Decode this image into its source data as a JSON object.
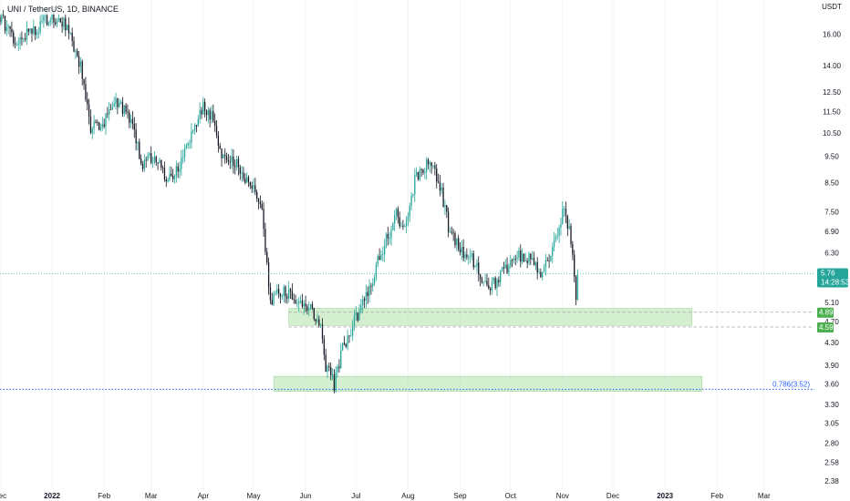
{
  "header": {
    "title": "UNI / TetherUS, 1D, BINANCE",
    "currency": "USDT"
  },
  "colors": {
    "up": "#26a69a",
    "down": "#131722",
    "zone": "#b7e4b0",
    "zone_border": "#8fd08a",
    "fib": "#2962ff",
    "price_line": "#26a69a"
  },
  "price_tag": {
    "price": "5.76",
    "countdown": "14:28:53"
  },
  "level_tags": [
    "4.89",
    "4.59"
  ],
  "fib_label": "0.786(3.52)",
  "chart_data": {
    "type": "candlestick",
    "scale": "log",
    "ylim": [
      2.3,
      18.5
    ],
    "xlim": [
      "2021-12-01",
      "2023-03-31"
    ],
    "y_ticks": [
      "16.00",
      "14.00",
      "12.50",
      "11.50",
      "10.50",
      "9.50",
      "8.50",
      "7.50",
      "6.90",
      "6.30",
      "5.10",
      "4.70",
      "4.30",
      "3.90",
      "3.60",
      "3.30",
      "3.05",
      "2.80",
      "2.58",
      "2.38"
    ],
    "x_ticks": [
      "Dec",
      "2022",
      "Feb",
      "Mar",
      "Apr",
      "May",
      "Jun",
      "Jul",
      "Aug",
      "Sep",
      "Oct",
      "Nov",
      "Dec",
      "2023",
      "Feb",
      "Mar"
    ],
    "close_path": [
      [
        "2021-12-01",
        17.2
      ],
      [
        "2021-12-10",
        15.5
      ],
      [
        "2021-12-20",
        16.2
      ],
      [
        "2022-01-01",
        17.3
      ],
      [
        "2022-01-10",
        16.5
      ],
      [
        "2022-01-18",
        14.0
      ],
      [
        "2022-01-24",
        10.8
      ],
      [
        "2022-02-01",
        11.0
      ],
      [
        "2022-02-09",
        12.0
      ],
      [
        "2022-02-16",
        11.2
      ],
      [
        "2022-02-24",
        9.2
      ],
      [
        "2022-03-03",
        9.6
      ],
      [
        "2022-03-10",
        8.6
      ],
      [
        "2022-03-17",
        9.1
      ],
      [
        "2022-03-24",
        10.2
      ],
      [
        "2022-04-01",
        11.7
      ],
      [
        "2022-04-06",
        11.2
      ],
      [
        "2022-04-12",
        9.5
      ],
      [
        "2022-04-20",
        9.3
      ],
      [
        "2022-04-30",
        8.4
      ],
      [
        "2022-05-06",
        7.5
      ],
      [
        "2022-05-09",
        6.0
      ],
      [
        "2022-05-11",
        5.1
      ],
      [
        "2022-05-15",
        5.4
      ],
      [
        "2022-05-22",
        5.3
      ],
      [
        "2022-05-31",
        5.1
      ],
      [
        "2022-06-10",
        4.7
      ],
      [
        "2022-06-13",
        3.9
      ],
      [
        "2022-06-18",
        3.6
      ],
      [
        "2022-06-22",
        4.1
      ],
      [
        "2022-06-30",
        4.7
      ],
      [
        "2022-07-08",
        5.3
      ],
      [
        "2022-07-15",
        6.2
      ],
      [
        "2022-07-25",
        7.4
      ],
      [
        "2022-07-30",
        7.0
      ],
      [
        "2022-08-06",
        8.8
      ],
      [
        "2022-08-14",
        9.2
      ],
      [
        "2022-08-20",
        8.4
      ],
      [
        "2022-08-26",
        6.8
      ],
      [
        "2022-09-01",
        6.4
      ],
      [
        "2022-09-08",
        6.2
      ],
      [
        "2022-09-14",
        5.6
      ],
      [
        "2022-09-21",
        5.5
      ],
      [
        "2022-09-28",
        5.9
      ],
      [
        "2022-10-05",
        6.2
      ],
      [
        "2022-10-12",
        6.1
      ],
      [
        "2022-10-19",
        5.8
      ],
      [
        "2022-10-26",
        6.4
      ],
      [
        "2022-11-02",
        7.6
      ],
      [
        "2022-11-05",
        7.0
      ],
      [
        "2022-11-09",
        5.3
      ],
      [
        "2022-11-10",
        5.76
      ]
    ],
    "zones": [
      {
        "from": "2022-05-22",
        "to": "2023-01-17",
        "top": 4.97,
        "bottom": 4.62
      },
      {
        "from": "2022-05-13",
        "to": "2023-01-23",
        "top": 3.72,
        "bottom": 3.49
      }
    ],
    "levels": [
      {
        "price": 4.89,
        "style": "dashed"
      },
      {
        "price": 4.59,
        "style": "dashed"
      }
    ],
    "fib_level": {
      "price": 3.52,
      "ratio": 0.786
    },
    "last_price": 5.76
  }
}
